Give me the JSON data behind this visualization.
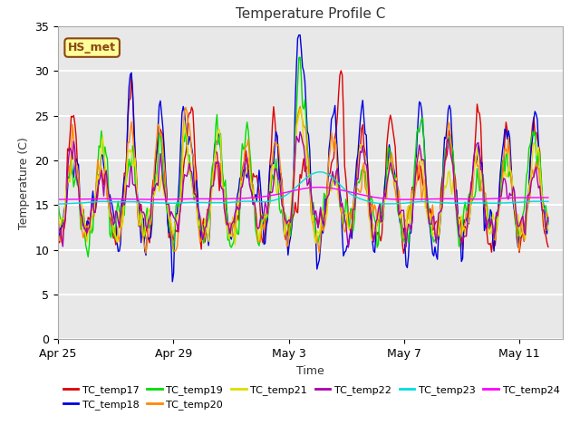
{
  "title": "Temperature Profile C",
  "xlabel": "Time",
  "ylabel": "Temperature (C)",
  "ylim": [
    0,
    35
  ],
  "yticks": [
    0,
    5,
    10,
    15,
    20,
    25,
    30,
    35
  ],
  "plot_bg_color": "#e8e8e8",
  "fig_bg_color": "#ffffff",
  "grid_color": "#ffffff",
  "annotation_text": "HS_met",
  "annotation_bg": "#ffff99",
  "annotation_border": "#8B4513",
  "series_colors": {
    "TC_temp17": "#dd0000",
    "TC_temp18": "#0000dd",
    "TC_temp19": "#00dd00",
    "TC_temp20": "#ff8800",
    "TC_temp21": "#dddd00",
    "TC_temp22": "#aa00aa",
    "TC_temp23": "#00dddd",
    "TC_temp24": "#ff00ff"
  },
  "xtick_pos": [
    0,
    4,
    8,
    12,
    16
  ],
  "xtick_labels": [
    "Apr 25",
    "Apr 29",
    "May 3",
    "May 7",
    "May 11"
  ],
  "xlim": [
    0,
    17.5
  ],
  "n_days": 17,
  "pts_per_day": 24
}
